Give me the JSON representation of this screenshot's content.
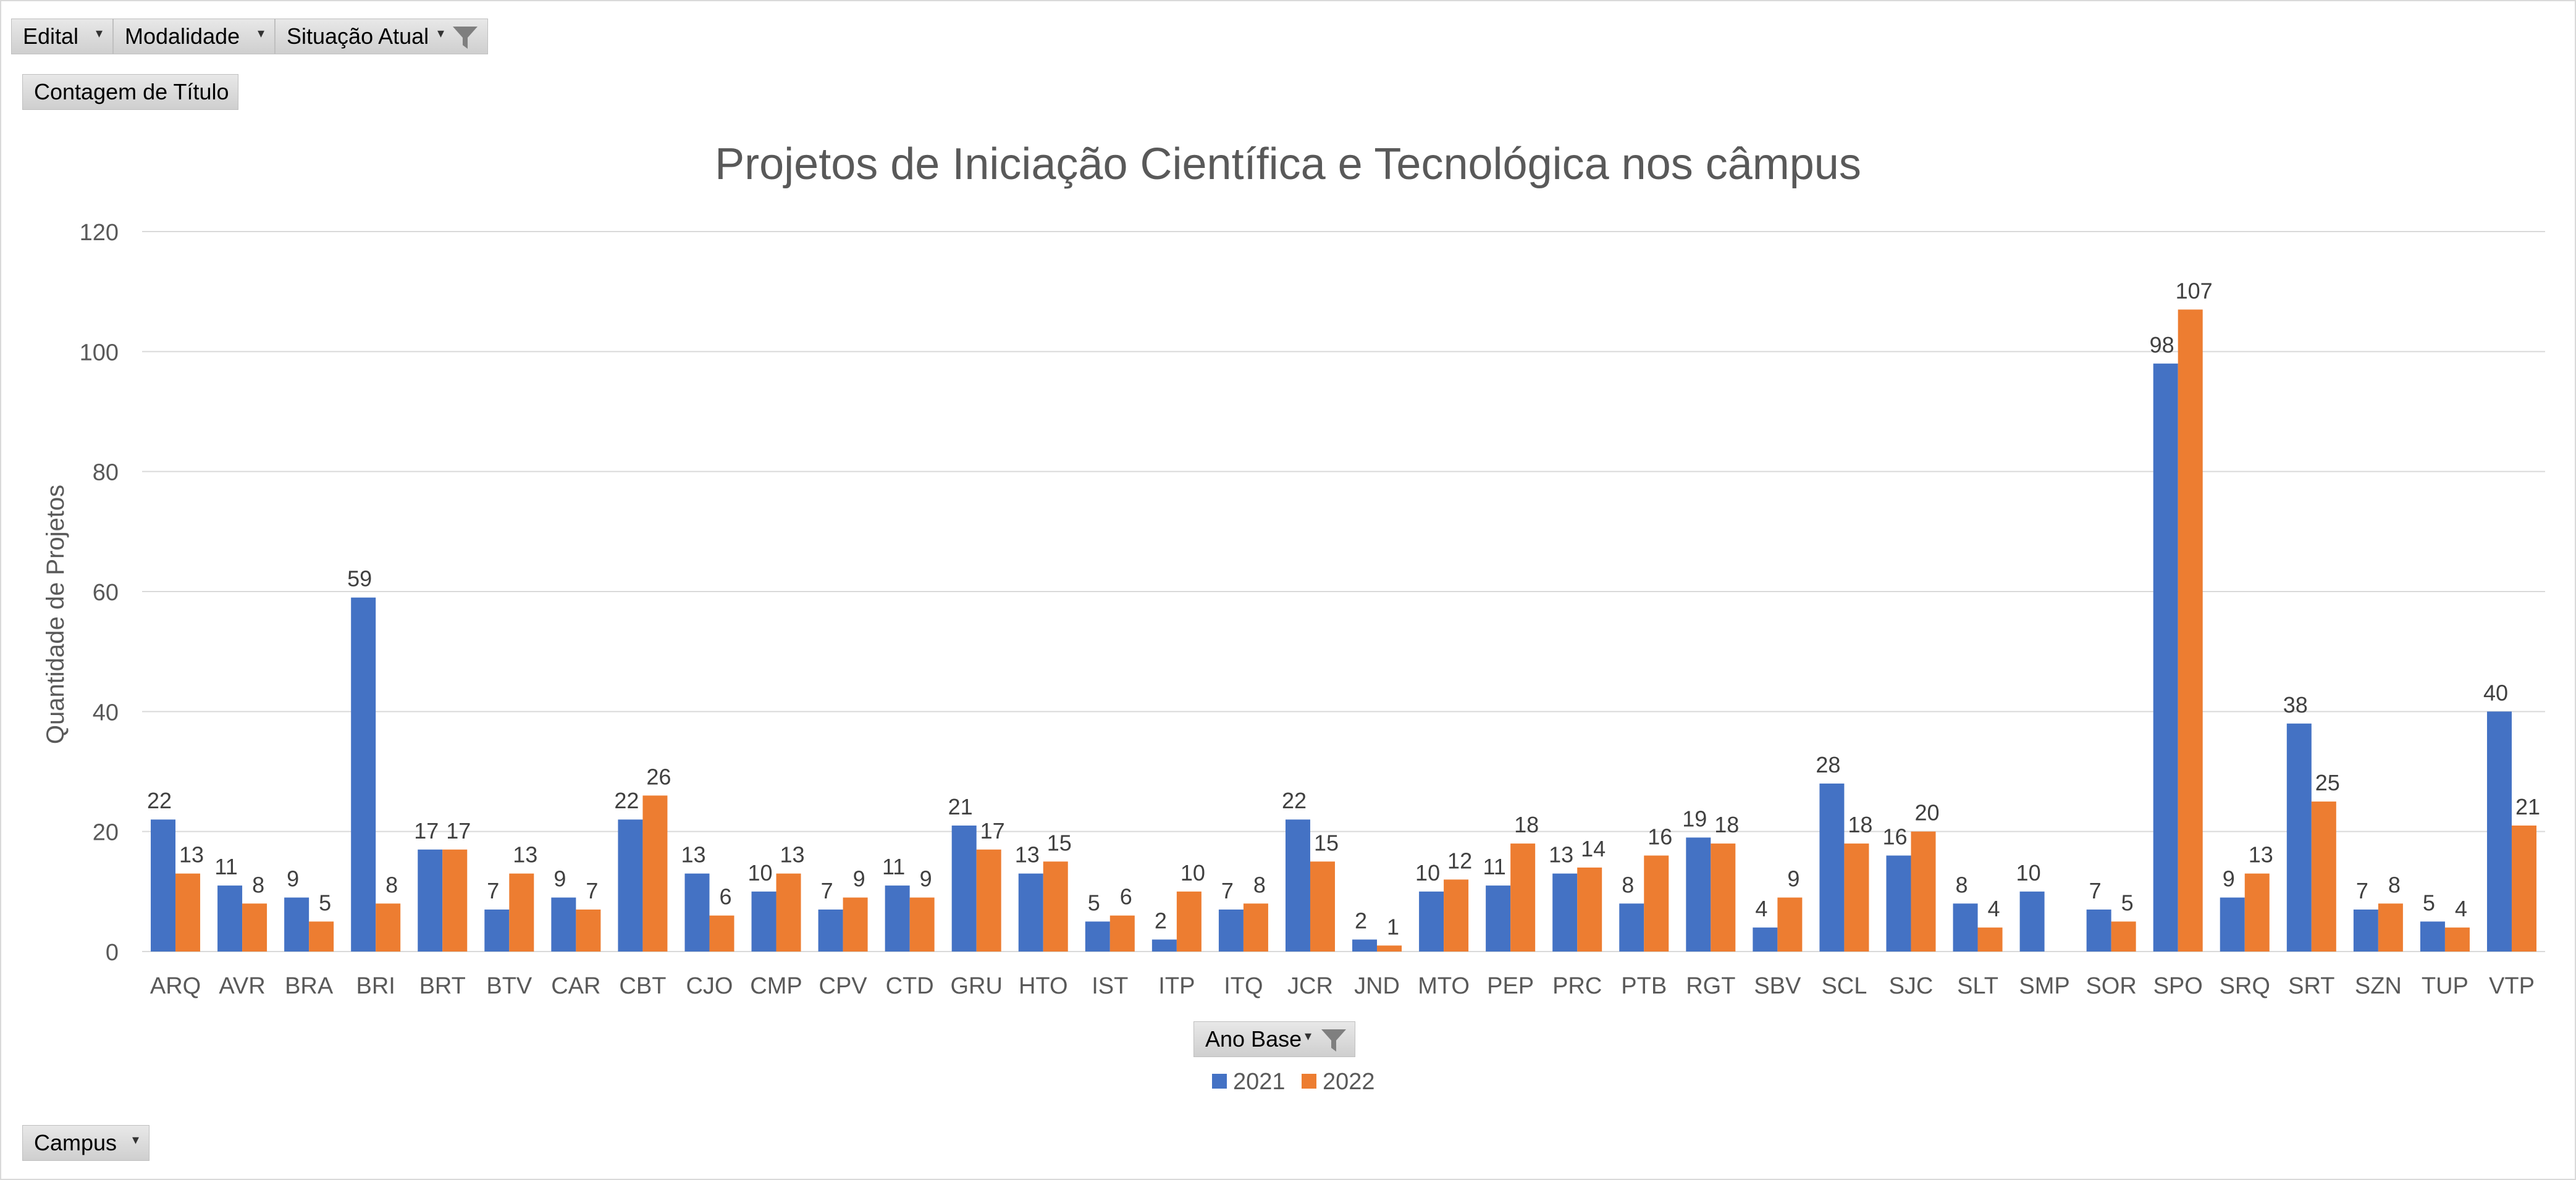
{
  "filters": {
    "edital_label": "Edital",
    "modalidade_label": "Modalidade",
    "situacao_label": "Situação Atual",
    "measure_label": "Contagem de Título",
    "legend_field_label": "Ano Base",
    "axis_field_label": "Campus"
  },
  "colors": {
    "series_2021": "#4472C4",
    "series_2022": "#ED7D31",
    "gridline": "#d9d9d9",
    "text": "#595959"
  },
  "chart_data": {
    "type": "bar",
    "title": "Projetos de Iniciação Científica e Tecnológica nos câmpus",
    "xlabel": "",
    "ylabel": "Quantidade de Projetos",
    "ylim": [
      0,
      120
    ],
    "yticks": [
      0,
      20,
      40,
      60,
      80,
      100,
      120
    ],
    "grid": true,
    "legend_position": "bottom",
    "categories": [
      "ARQ",
      "AVR",
      "BRA",
      "BRI",
      "BRT",
      "BTV",
      "CAR",
      "CBT",
      "CJO",
      "CMP",
      "CPV",
      "CTD",
      "GRU",
      "HTO",
      "IST",
      "ITP",
      "ITQ",
      "JCR",
      "JND",
      "MTO",
      "PEP",
      "PRC",
      "PTB",
      "RGT",
      "SBV",
      "SCL",
      "SJC",
      "SLT",
      "SMP",
      "SOR",
      "SPO",
      "SRQ",
      "SRT",
      "SZN",
      "TUP",
      "VTP"
    ],
    "series": [
      {
        "name": "2021",
        "values": [
          22,
          11,
          9,
          59,
          17,
          7,
          9,
          22,
          13,
          10,
          7,
          11,
          21,
          13,
          5,
          2,
          7,
          22,
          2,
          10,
          11,
          13,
          8,
          19,
          4,
          28,
          16,
          8,
          10,
          7,
          98,
          9,
          38,
          7,
          5,
          40
        ]
      },
      {
        "name": "2022",
        "values": [
          13,
          8,
          5,
          8,
          17,
          13,
          7,
          26,
          6,
          13,
          9,
          9,
          17,
          15,
          6,
          10,
          8,
          15,
          1,
          12,
          18,
          14,
          16,
          18,
          9,
          18,
          20,
          4,
          null,
          5,
          107,
          13,
          25,
          8,
          4,
          21
        ]
      }
    ]
  }
}
